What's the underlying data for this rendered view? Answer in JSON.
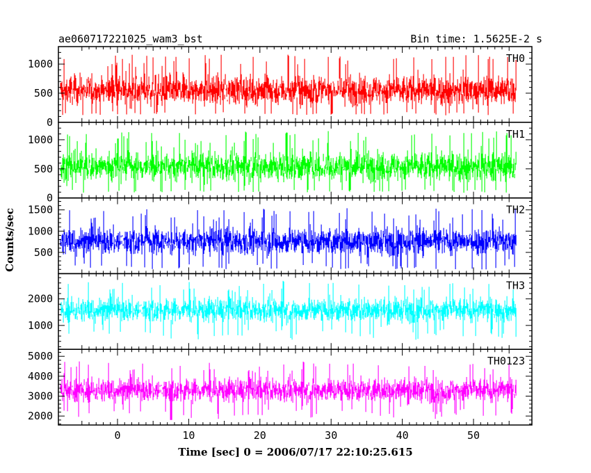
{
  "header": {
    "title": "ae060717221025_wam3_bst",
    "bin_time": "Bin time: 1.5625E-2 s"
  },
  "chart_data": {
    "type": "line",
    "title": "ae060717221025_wam3_bst",
    "subtitle": "Bin time: 1.5625E-2 s",
    "xlabel": "Time [sec] 0 = 2006/07/17 22:10:25.615",
    "ylabel": "Counts/sec",
    "xlim": [
      -8.3,
      58.2
    ],
    "x_ticks": [
      0,
      10,
      20,
      30,
      40,
      50
    ],
    "x_tick_labels": [
      "0",
      "10",
      "20",
      "30",
      "40",
      "50"
    ],
    "x_data_range": [
      -8,
      56
    ],
    "grid": false,
    "panels": [
      {
        "name": "TH0",
        "color": "#ff0000",
        "ylim": [
          0,
          1300
        ],
        "yticks": [
          0,
          500,
          1000
        ],
        "ytick_labels": [
          "0",
          "500",
          "1000"
        ],
        "mean": 550,
        "spread": 180,
        "low": 120,
        "high": 1280,
        "dip": 0
      },
      {
        "name": "TH1",
        "color": "#00ff00",
        "ylim": [
          0,
          1300
        ],
        "yticks": [
          0,
          500,
          1000
        ],
        "ytick_labels": [
          "0",
          "500",
          "1000"
        ],
        "mean": 540,
        "spread": 180,
        "low": 90,
        "high": 1300,
        "dip": 0
      },
      {
        "name": "TH2",
        "color": "#0000ff",
        "ylim": [
          0,
          1780
        ],
        "yticks": [
          500,
          1000,
          1500
        ],
        "ytick_labels": [
          "500",
          "1000",
          "1500"
        ],
        "mean": 760,
        "spread": 230,
        "low": 100,
        "high": 1780,
        "dip": 0
      },
      {
        "name": "TH3",
        "color": "#00ffff",
        "ylim": [
          100,
          2950
        ],
        "yticks": [
          1000,
          2000
        ],
        "ytick_labels": [
          "1000",
          "2000"
        ],
        "mean": 1580,
        "spread": 330,
        "low": 300,
        "high": 2950,
        "dip": 0
      },
      {
        "name": "TH0123",
        "color": "#ff00ff",
        "ylim": [
          1550,
          5350
        ],
        "yticks": [
          2000,
          3000,
          4000,
          5000
        ],
        "ytick_labels": [
          "2000",
          "3000",
          "4000",
          "5000"
        ],
        "mean": 3300,
        "spread": 430,
        "low": 1850,
        "high": 5300,
        "dip": 1
      }
    ]
  }
}
